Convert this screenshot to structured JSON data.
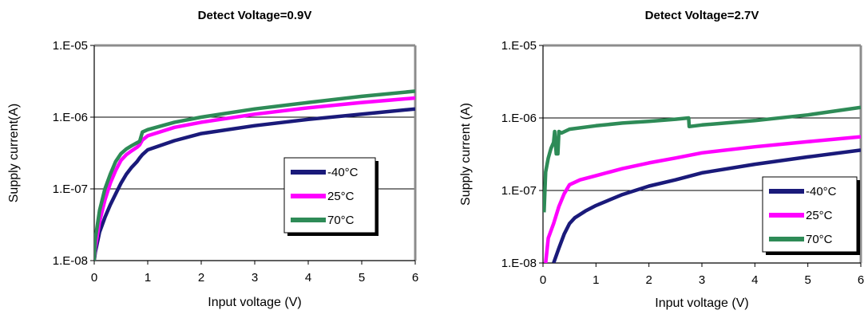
{
  "chart_data": [
    {
      "type": "line",
      "title": "Detect Voltage=0.9V",
      "xlabel": "Input voltage (V)",
      "ylabel": "Supply current(A)",
      "xlim": [
        0,
        6
      ],
      "ylim": [
        1e-08,
        1e-05
      ],
      "yscale": "log",
      "grid": "horizontal",
      "legend_position": "right",
      "xticks": [
        0,
        1,
        2,
        3,
        4,
        5,
        6
      ],
      "xtick_labels": [
        "0",
        "1",
        "2",
        "3",
        "4",
        "5",
        "6"
      ],
      "yticks": [
        1e-08,
        1e-07,
        1e-06,
        1e-05
      ],
      "ytick_labels": [
        "1.E-08",
        "1.E-07",
        "1.E-06",
        "1.E-05"
      ],
      "series": [
        {
          "name": "-40°C",
          "color": "#1a1a7a",
          "x": [
            0.0,
            0.02,
            0.1,
            0.2,
            0.3,
            0.4,
            0.5,
            0.6,
            0.7,
            0.8,
            0.85,
            0.9,
            1.0,
            1.5,
            2.0,
            3.0,
            4.0,
            5.0,
            6.0
          ],
          "y": [
            1e-08,
            1.3e-08,
            2.5e-08,
            4e-08,
            6e-08,
            8.5e-08,
            1.2e-07,
            1.6e-07,
            2e-07,
            2.4e-07,
            2.7e-07,
            3e-07,
            3.5e-07,
            4.7e-07,
            5.9e-07,
            7.6e-07,
            9.3e-07,
            1.1e-06,
            1.3e-06
          ]
        },
        {
          "name": "25°C",
          "color": "#ff00ff",
          "x": [
            0.0,
            0.02,
            0.1,
            0.2,
            0.3,
            0.4,
            0.5,
            0.6,
            0.7,
            0.8,
            0.85,
            0.9,
            1.0,
            1.5,
            2.0,
            3.0,
            4.0,
            5.0,
            6.0
          ],
          "y": [
            1e-08,
            1.5e-08,
            3.5e-08,
            7e-08,
            1.2e-07,
            1.8e-07,
            2.5e-07,
            3e-07,
            3.4e-07,
            3.8e-07,
            4.1e-07,
            4.8e-07,
            5.5e-07,
            7.2e-07,
            8.5e-07,
            1.1e-06,
            1.35e-06,
            1.6e-06,
            1.85e-06
          ]
        },
        {
          "name": "70°C",
          "color": "#2e8b57",
          "x": [
            0.0,
            0.02,
            0.1,
            0.2,
            0.3,
            0.4,
            0.5,
            0.6,
            0.7,
            0.8,
            0.85,
            0.9,
            1.0,
            1.5,
            2.0,
            3.0,
            4.0,
            5.0,
            6.0
          ],
          "y": [
            1e-08,
            2e-08,
            5e-08,
            1e-07,
            1.6e-07,
            2.4e-07,
            3.1e-07,
            3.6e-07,
            4e-07,
            4.4e-07,
            4.6e-07,
            6.2e-07,
            6.7e-07,
            8.5e-07,
            1e-06,
            1.3e-06,
            1.6e-06,
            1.95e-06,
            2.3e-06
          ]
        }
      ]
    },
    {
      "type": "line",
      "title": "Detect Voltage=2.7V",
      "xlabel": "Input voltage (V)",
      "ylabel": "Supply current (A)",
      "xlim": [
        0,
        6
      ],
      "ylim": [
        1e-08,
        1e-05
      ],
      "yscale": "log",
      "grid": "horizontal",
      "legend_position": "lower-right",
      "xticks": [
        0,
        1,
        2,
        3,
        4,
        5,
        6
      ],
      "xtick_labels": [
        "0",
        "1",
        "2",
        "3",
        "4",
        "5",
        "6"
      ],
      "yticks": [
        1e-08,
        1e-07,
        1e-06,
        1e-05
      ],
      "ytick_labels": [
        "1.E-08",
        "1.E-07",
        "1.E-06",
        "1.E-05"
      ],
      "series": [
        {
          "name": "-40°C",
          "color": "#1a1a7a",
          "x": [
            0.2,
            0.3,
            0.4,
            0.5,
            0.6,
            0.8,
            1.0,
            1.5,
            2.0,
            2.5,
            3.0,
            4.0,
            5.0,
            6.0
          ],
          "y": [
            1e-08,
            1.6e-08,
            2.5e-08,
            3.5e-08,
            4.2e-08,
            5.2e-08,
            6.2e-08,
            8.8e-08,
            1.15e-07,
            1.4e-07,
            1.75e-07,
            2.3e-07,
            2.9e-07,
            3.6e-07
          ]
        },
        {
          "name": "25°C",
          "color": "#ff00ff",
          "x": [
            0.05,
            0.1,
            0.2,
            0.3,
            0.4,
            0.5,
            0.7,
            1.0,
            1.5,
            2.0,
            2.5,
            3.0,
            4.0,
            5.0,
            6.0
          ],
          "y": [
            1e-08,
            2.2e-08,
            3.5e-08,
            6e-08,
            9e-08,
            1.2e-07,
            1.4e-07,
            1.6e-07,
            2e-07,
            2.4e-07,
            2.8e-07,
            3.3e-07,
            4e-07,
            4.7e-07,
            5.5e-07
          ]
        },
        {
          "name": "70°C",
          "color": "#2e8b57",
          "x": [
            0.02,
            0.05,
            0.1,
            0.15,
            0.2,
            0.22,
            0.25,
            0.28,
            0.3,
            0.35,
            0.5,
            1.0,
            1.5,
            2.0,
            2.5,
            2.75,
            2.76,
            3.0,
            4.0,
            5.0,
            6.0
          ],
          "y": [
            5e-08,
            1.8e-07,
            2.8e-07,
            3.8e-07,
            4.6e-07,
            6.5e-07,
            3.2e-07,
            3.2e-07,
            6.5e-07,
            6.2e-07,
            7e-07,
            7.8e-07,
            8.5e-07,
            9e-07,
            9.6e-07,
            1e-06,
            7.6e-07,
            8e-07,
            9.2e-07,
            1.1e-06,
            1.4e-06
          ]
        }
      ]
    }
  ]
}
